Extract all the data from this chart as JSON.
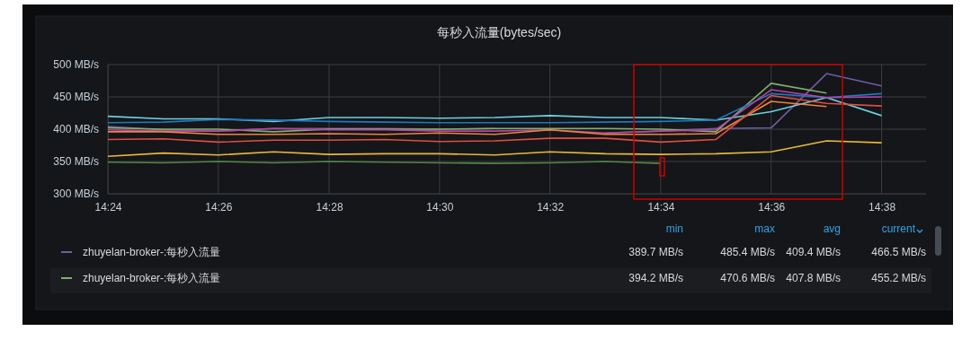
{
  "chart_data": {
    "type": "line",
    "title": "每秒入流量(bytes/sec)",
    "x": [
      14.4,
      14.4167,
      14.4333,
      14.45,
      14.4667,
      14.4833,
      14.5,
      14.5167,
      14.5333,
      14.55,
      14.5667,
      14.5833,
      14.6,
      14.6167,
      14.6333
    ],
    "xlim": [
      14.4,
      14.6467
    ],
    "xticks": [
      {
        "value": 14.4,
        "label": "14:24"
      },
      {
        "value": 14.4333,
        "label": "14:26"
      },
      {
        "value": 14.4667,
        "label": "14:28"
      },
      {
        "value": 14.5,
        "label": "14:30"
      },
      {
        "value": 14.5333,
        "label": "14:32"
      },
      {
        "value": 14.5667,
        "label": "14:34"
      },
      {
        "value": 14.6,
        "label": "14:36"
      },
      {
        "value": 14.6333,
        "label": "14:38"
      }
    ],
    "ylim": [
      300,
      500
    ],
    "yticks": [
      {
        "value": 300,
        "label": "300 MB/s"
      },
      {
        "value": 350,
        "label": "350 MB/s"
      },
      {
        "value": 400,
        "label": "400 MB/s"
      },
      {
        "value": 450,
        "label": "450 MB/s"
      },
      {
        "value": 500,
        "label": "500 MB/s"
      }
    ],
    "grid": true,
    "legend": "bottom",
    "line_style": "solid",
    "marker": "none",
    "series": [
      {
        "name": "zhuyelan-broker-:每秒入流量",
        "color": "#705da0",
        "values": [
          404,
          399,
          397,
          401,
          401,
          401,
          400,
          401,
          null,
          394,
          397,
          401,
          402,
          486,
          467
        ]
      },
      {
        "name": "zhuyelan-broker-:每秒入流量",
        "color": "#7eb26d",
        "values": [
          402,
          400,
          400,
          396,
          400,
          400,
          400,
          401,
          401,
          401,
          400,
          396,
          471,
          456,
          null
        ]
      },
      {
        "color": "#6ed0e0",
        "values": [
          420,
          416,
          416,
          412,
          418,
          418,
          417,
          418,
          421,
          418,
          418,
          414,
          427,
          449,
          421
        ]
      },
      {
        "color": "#1f78c1",
        "values": [
          410,
          411,
          415,
          414,
          412,
          411,
          410,
          410,
          410,
          411,
          412,
          414,
          455,
          449,
          455
        ]
      },
      {
        "color": "#ba43a9",
        "values": [
          399,
          397,
          397,
          401,
          399,
          399,
          397,
          397,
          399,
          394,
          397,
          399,
          461,
          449,
          450
        ]
      },
      {
        "color": "#ef843c",
        "values": [
          396,
          396,
          392,
          392,
          393,
          392,
          394,
          392,
          399,
          392,
          392,
          393,
          443,
          435,
          null
        ]
      },
      {
        "color": "#e24d42",
        "values": [
          384,
          385,
          380,
          383,
          383,
          384,
          381,
          382,
          386,
          386,
          380,
          384,
          452,
          440,
          436
        ]
      },
      {
        "color": "#eab839",
        "values": [
          358,
          363,
          360,
          365,
          361,
          362,
          362,
          360,
          365,
          362,
          361,
          362,
          365,
          382,
          379
        ]
      },
      {
        "color": "#508642",
        "values": [
          349,
          348,
          350,
          348,
          350,
          349,
          348,
          347,
          348,
          350,
          347,
          null,
          null,
          null,
          null
        ]
      }
    ],
    "annotations": [
      "min",
      "max",
      "avg",
      "current",
      "389.7 MB/s",
      "485.4 MB/s",
      "409.4 MB/s",
      "466.5 MB/s",
      "394.2 MB/s",
      "470.6 MB/s",
      "407.8 MB/s",
      "455.2 MB/s"
    ]
  }
}
